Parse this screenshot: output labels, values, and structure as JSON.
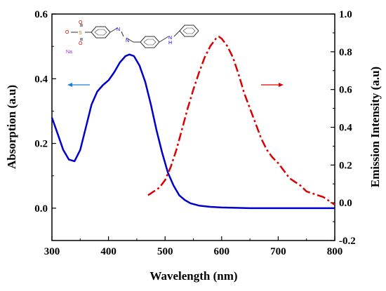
{
  "chart_data": {
    "type": "line",
    "xlabel": "Wavelength (nm)",
    "ylabel_left": "Absorption (a.u)",
    "ylabel_right": "Emission Intensity (a.u)",
    "xlim": [
      300,
      800
    ],
    "ylim_left": [
      -0.1,
      0.6
    ],
    "ylim_right": [
      -0.2,
      1.0
    ],
    "x_ticks": [
      "300",
      "400",
      "500",
      "600",
      "700",
      "800"
    ],
    "y_left_ticks": [
      "0.0",
      "0.2",
      "0.4",
      "0.6"
    ],
    "y_right_ticks": [
      "-0.2",
      "0.0",
      "0.2",
      "0.4",
      "0.6",
      "0.8",
      "1.0"
    ],
    "grid": false,
    "series": [
      {
        "axis": "left",
        "color": "#0000cc",
        "style": "solid",
        "x": [
          300,
          310,
          320,
          330,
          340,
          350,
          360,
          370,
          380,
          390,
          400,
          410,
          420,
          430,
          437,
          445,
          455,
          465,
          475,
          485,
          495,
          505,
          515,
          525,
          535,
          545,
          560,
          580,
          600,
          650,
          700,
          750,
          800
        ],
        "values": [
          0.28,
          0.23,
          0.18,
          0.15,
          0.145,
          0.18,
          0.25,
          0.32,
          0.36,
          0.38,
          0.395,
          0.42,
          0.45,
          0.47,
          0.475,
          0.47,
          0.44,
          0.39,
          0.32,
          0.24,
          0.17,
          0.11,
          0.07,
          0.04,
          0.025,
          0.015,
          0.008,
          0.004,
          0.002,
          0.0,
          0.0,
          0.0,
          0.0
        ]
      },
      {
        "axis": "right",
        "color": "#dd0000",
        "style": "dashdot",
        "x": [
          470,
          480,
          490,
          500,
          510,
          520,
          530,
          540,
          550,
          560,
          570,
          580,
          590,
          595,
          600,
          610,
          620,
          630,
          640,
          650,
          660,
          670,
          680,
          690,
          700,
          710,
          720,
          730,
          740,
          750,
          760,
          770,
          780,
          790,
          800
        ],
        "values": [
          0.04,
          0.06,
          0.08,
          0.12,
          0.19,
          0.28,
          0.39,
          0.5,
          0.6,
          0.69,
          0.77,
          0.83,
          0.87,
          0.88,
          0.87,
          0.83,
          0.77,
          0.68,
          0.58,
          0.5,
          0.42,
          0.34,
          0.28,
          0.24,
          0.21,
          0.17,
          0.13,
          0.11,
          0.09,
          0.06,
          0.05,
          0.04,
          0.03,
          0.01,
          -0.01
        ]
      }
    ],
    "annotations": [
      {
        "type": "arrow",
        "color": "#1a7fd6",
        "direction": "left",
        "meaning": "points to left axis"
      },
      {
        "type": "arrow",
        "color": "#e00000",
        "direction": "right",
        "meaning": "points to right axis"
      }
    ],
    "inset_structure": {
      "labels": [
        "O",
        "S",
        "Na",
        "N",
        "H"
      ]
    }
  }
}
